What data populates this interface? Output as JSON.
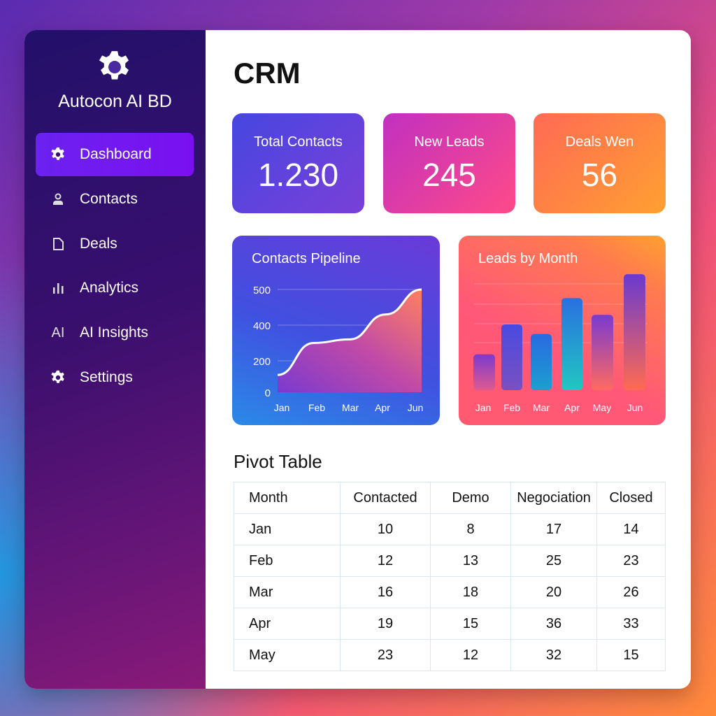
{
  "sidebar": {
    "brand": "Autocon AI BD",
    "logo_icon": "gear-icon",
    "items": [
      {
        "label": "Dashboard",
        "icon": "gear-icon",
        "active": true
      },
      {
        "label": "Contacts",
        "icon": "user-icon"
      },
      {
        "label": "Deals",
        "icon": "document-icon"
      },
      {
        "label": "Analytics",
        "icon": "bar-chart-icon"
      },
      {
        "label": "AI Insights",
        "icon": "ai-text-icon",
        "icon_text": "AI"
      },
      {
        "label": "Settings",
        "icon": "gear-icon"
      }
    ]
  },
  "main": {
    "title": "CRM",
    "kpis": [
      {
        "label": "Total Contacts",
        "value": "1.230"
      },
      {
        "label": "New Leads",
        "value": "245"
      },
      {
        "label": "Deals Wen",
        "value": "56"
      }
    ],
    "pivot": {
      "title": "Pivot Table",
      "columns": [
        "Month",
        "Contacted",
        "Demo",
        "Negociation",
        "Closed"
      ],
      "rows": [
        [
          "Jan",
          "10",
          "8",
          "17",
          "14"
        ],
        [
          "Feb",
          "12",
          "13",
          "25",
          "23"
        ],
        [
          "Mar",
          "16",
          "18",
          "20",
          "26"
        ],
        [
          "Apr",
          "19",
          "15",
          "36",
          "33"
        ],
        [
          "May",
          "23",
          "12",
          "32",
          "15"
        ]
      ]
    }
  },
  "chart_data": [
    {
      "type": "area",
      "title": "Contacts Pipeline",
      "categories": [
        "Jan",
        "Feb",
        "Mar",
        "Apr",
        "Jun"
      ],
      "values": [
        110,
        300,
        320,
        430,
        505
      ],
      "yticks": [
        "0",
        "200",
        "400",
        "500"
      ],
      "ylim": [
        0,
        500
      ],
      "grid": true
    },
    {
      "type": "bar",
      "title": "Leads by Month",
      "categories": [
        "Jan",
        "Feb",
        "Mar",
        "Apr",
        "May",
        "Jun"
      ],
      "values": [
        30,
        55,
        47,
        77,
        63,
        97
      ],
      "ylim": [
        0,
        100
      ],
      "grid": true
    }
  ],
  "colors": {
    "accent": "#6b22f0",
    "kpi1": "#4a4ae0",
    "kpi2": "#e0409a",
    "kpi3": "#ff7a45"
  }
}
